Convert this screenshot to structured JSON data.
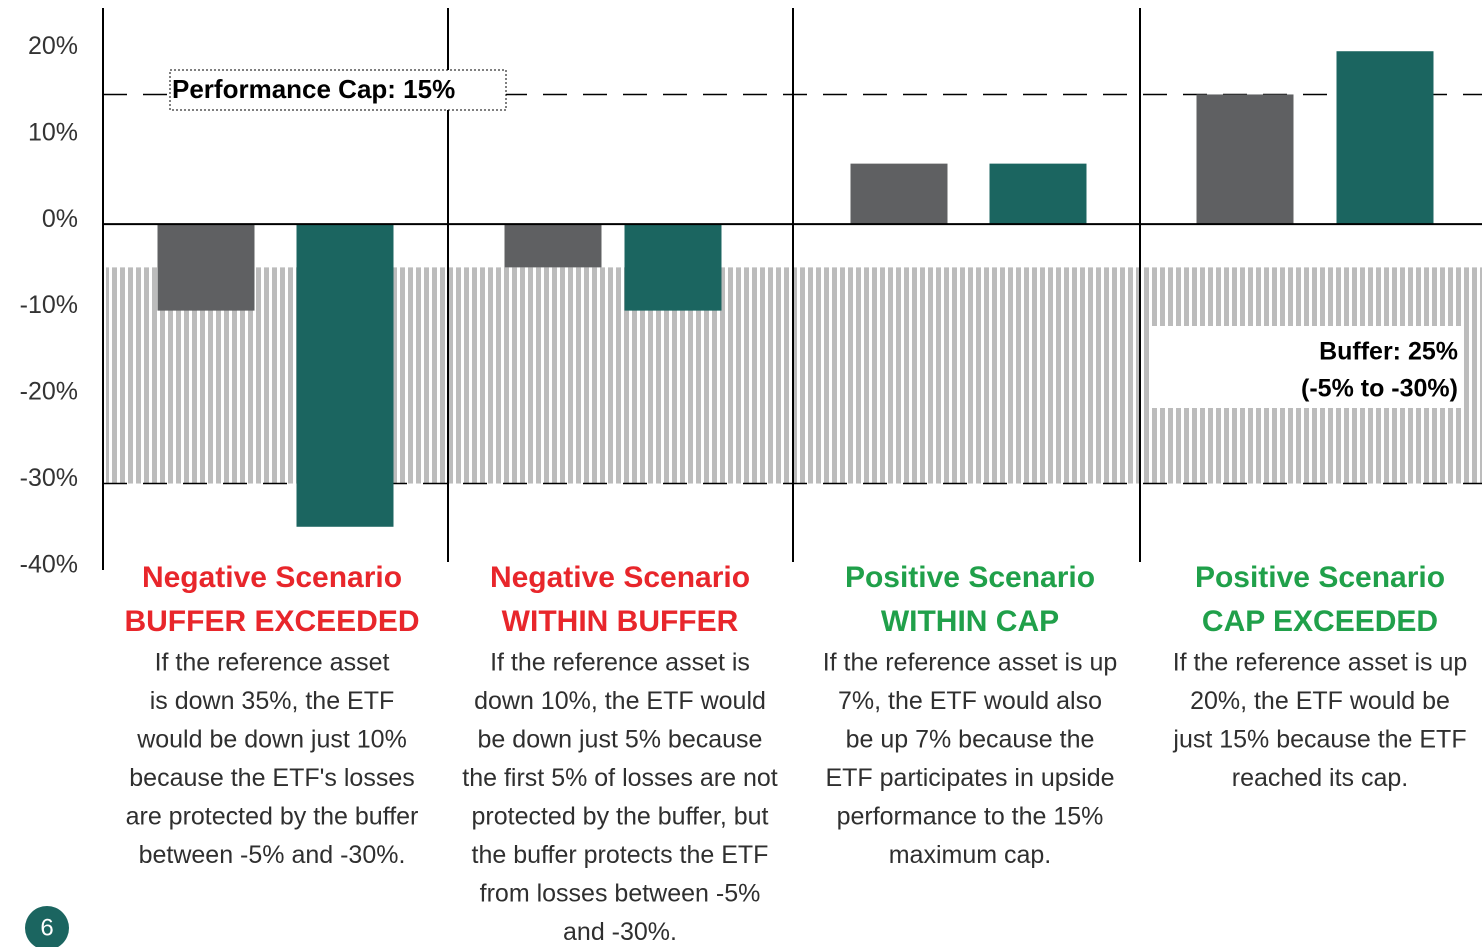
{
  "chart_data": {
    "type": "bar",
    "ylim": [
      -40,
      25
    ],
    "yticks": [
      {
        "value": -40,
        "label": "-40%"
      },
      {
        "value": -30,
        "label": "-30%"
      },
      {
        "value": -20,
        "label": "-20%"
      },
      {
        "value": -10,
        "label": "-10%"
      },
      {
        "value": 0,
        "label": "0%"
      },
      {
        "value": 10,
        "label": "10%"
      },
      {
        "value": 20,
        "label": "20%"
      }
    ],
    "series": [
      {
        "color": "#5f6062",
        "values": [
          -10,
          -5,
          7,
          15
        ]
      },
      {
        "color": "#1b6560",
        "values": [
          -35,
          -10,
          7,
          20
        ]
      }
    ],
    "cap": 15,
    "cap_label": "Performance Cap: 15%",
    "buffer_range": [
      -5,
      -30
    ],
    "buffer_label": [
      "Buffer: 25%",
      "(-5% to -30%)"
    ],
    "panels": [
      {
        "title": [
          "Negative Scenario",
          "BUFFER EXCEEDED"
        ],
        "title_color": "#e8262b",
        "text": [
          "If the reference asset",
          "is down 35%, the ETF",
          "would be down just 10%",
          "because the ETF's losses",
          "are protected by the buffer",
          "between -5% and -30%."
        ]
      },
      {
        "title": [
          "Negative Scenario",
          "WITHIN BUFFER"
        ],
        "title_color": "#e8262b",
        "text": [
          "If the reference asset is",
          "down 10%, the ETF would",
          "be down just 5% because",
          "the first 5% of losses are not",
          "protected by the buffer, but",
          "the buffer protects the ETF",
          "from losses between -5%",
          "and -30%."
        ]
      },
      {
        "title": [
          "Positive Scenario",
          "WITHIN CAP"
        ],
        "title_color": "#20a04a",
        "text": [
          "If the reference asset is up",
          "7%, the ETF would also",
          "be up 7% because the",
          "ETF participates in upside",
          "performance to the 15%",
          "maximum cap."
        ]
      },
      {
        "title": [
          "Positive Scenario",
          "CAP EXCEEDED"
        ],
        "title_color": "#20a04a",
        "text": [
          "If the reference asset is up",
          "20%, the ETF would be",
          "just 15% because the ETF",
          "reached its cap."
        ]
      }
    ]
  },
  "page_number": "6"
}
